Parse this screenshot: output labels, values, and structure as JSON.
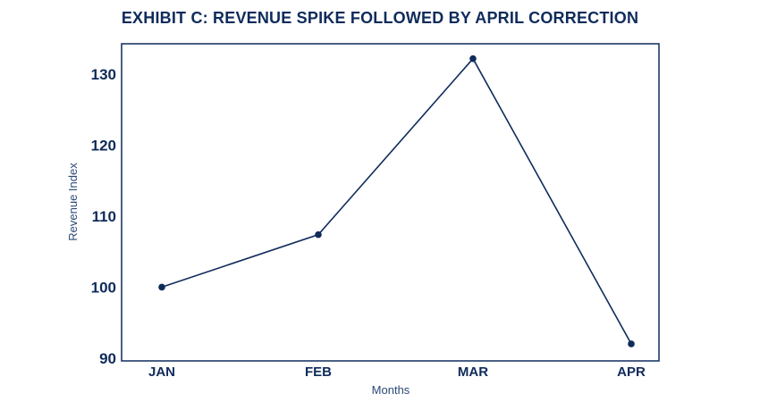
{
  "chart_data": {
    "type": "line",
    "title": "EXHIBIT C: REVENUE SPIKE FOLLOWED BY APRIL CORRECTION",
    "xlabel": "Months",
    "ylabel": "Revenue Index",
    "categories": [
      "JAN",
      "FEB",
      "MAR",
      "APR"
    ],
    "series": [
      {
        "name": "Revenue Index",
        "values": [
          100,
          107.4,
          132.2,
          92
        ]
      }
    ],
    "yticks": [
      90,
      100,
      110,
      120,
      130
    ],
    "ylim": [
      89.6,
      134.3
    ],
    "grid": false,
    "legend": "none",
    "color": "#0f2b5b"
  }
}
